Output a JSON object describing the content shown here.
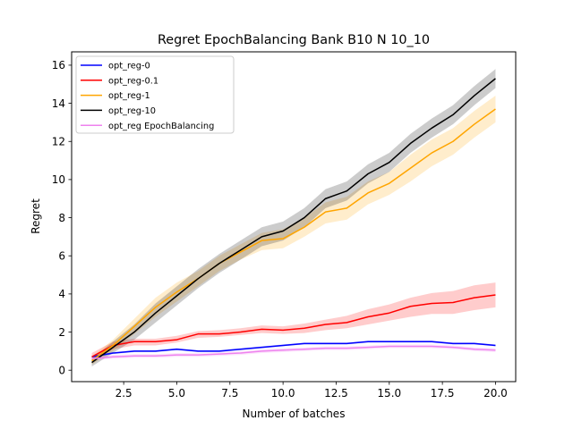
{
  "chart_data": {
    "type": "line",
    "title": "Regret EpochBalancing Bank B10 N 10_10",
    "xlabel": "Number of batches",
    "ylabel": "Regret",
    "xlim": [
      0.05,
      20.95
    ],
    "ylim": [
      -0.6,
      16.7
    ],
    "xticks": [
      2.5,
      5.0,
      7.5,
      10.0,
      12.5,
      15.0,
      17.5,
      20.0
    ],
    "xtick_labels": [
      "2.5",
      "5.0",
      "7.5",
      "10.0",
      "12.5",
      "15.0",
      "17.5",
      "20.0"
    ],
    "yticks": [
      0,
      2,
      4,
      6,
      8,
      10,
      12,
      14,
      16
    ],
    "ytick_labels": [
      "0",
      "2",
      "4",
      "6",
      "8",
      "10",
      "12",
      "14",
      "16"
    ],
    "grid": false,
    "legend_position": "top-left",
    "x": [
      1,
      2,
      3,
      4,
      5,
      6,
      7,
      8,
      9,
      10,
      11,
      12,
      13,
      14,
      15,
      16,
      17,
      18,
      19,
      20
    ],
    "series": [
      {
        "name": "opt_reg-0",
        "color": "#0000ff",
        "values": [
          0.7,
          0.9,
          1.0,
          1.0,
          1.1,
          1.0,
          1.0,
          1.1,
          1.2,
          1.3,
          1.4,
          1.4,
          1.4,
          1.5,
          1.5,
          1.5,
          1.5,
          1.4,
          1.4,
          1.3
        ],
        "lower": [
          0.65,
          0.85,
          0.95,
          0.95,
          1.05,
          0.95,
          0.95,
          1.05,
          1.15,
          1.25,
          1.35,
          1.35,
          1.35,
          1.45,
          1.45,
          1.45,
          1.45,
          1.35,
          1.35,
          1.25
        ],
        "upper": [
          0.75,
          0.95,
          1.05,
          1.05,
          1.15,
          1.05,
          1.05,
          1.15,
          1.25,
          1.35,
          1.45,
          1.45,
          1.45,
          1.55,
          1.55,
          1.55,
          1.55,
          1.45,
          1.45,
          1.35
        ]
      },
      {
        "name": "opt_reg-0.1",
        "color": "#ff0000",
        "values": [
          0.7,
          1.3,
          1.5,
          1.5,
          1.6,
          1.9,
          1.9,
          2.0,
          2.15,
          2.1,
          2.2,
          2.4,
          2.5,
          2.8,
          3.0,
          3.35,
          3.5,
          3.55,
          3.8,
          3.95
        ],
        "lower": [
          0.5,
          1.1,
          1.3,
          1.3,
          1.45,
          1.7,
          1.75,
          1.85,
          1.95,
          1.9,
          1.95,
          2.1,
          2.2,
          2.4,
          2.6,
          2.8,
          2.95,
          2.95,
          3.15,
          3.3
        ],
        "upper": [
          0.9,
          1.5,
          1.65,
          1.65,
          1.8,
          2.05,
          2.1,
          2.2,
          2.35,
          2.3,
          2.45,
          2.65,
          2.85,
          3.2,
          3.45,
          3.8,
          4.05,
          4.15,
          4.45,
          4.6
        ]
      },
      {
        "name": "opt_reg-1",
        "color": "#ffa500",
        "values": [
          0.5,
          1.3,
          2.3,
          3.3,
          4.1,
          4.8,
          5.6,
          6.2,
          6.8,
          6.9,
          7.5,
          8.3,
          8.5,
          9.3,
          9.8,
          10.6,
          11.4,
          12.0,
          12.9,
          13.7
        ],
        "lower": [
          0.3,
          1.0,
          1.9,
          2.8,
          3.6,
          4.4,
          5.2,
          5.8,
          6.3,
          6.4,
          7.0,
          7.7,
          7.9,
          8.7,
          9.2,
          9.9,
          10.7,
          11.3,
          12.2,
          13.0
        ],
        "upper": [
          0.7,
          1.6,
          2.7,
          3.8,
          4.6,
          5.2,
          6.0,
          6.6,
          7.2,
          7.4,
          8.0,
          8.8,
          9.1,
          9.9,
          10.4,
          11.3,
          12.1,
          12.7,
          13.6,
          14.4
        ]
      },
      {
        "name": "opt_reg-10",
        "color": "#000000",
        "values": [
          0.4,
          1.2,
          2.0,
          3.0,
          3.9,
          4.8,
          5.6,
          6.3,
          7.0,
          7.3,
          8.0,
          9.0,
          9.4,
          10.3,
          10.9,
          11.9,
          12.7,
          13.4,
          14.4,
          15.3
        ],
        "lower": [
          0.2,
          0.9,
          1.6,
          2.5,
          3.4,
          4.3,
          5.1,
          5.8,
          6.5,
          6.8,
          7.5,
          8.5,
          8.9,
          9.8,
          10.4,
          11.4,
          12.2,
          12.9,
          13.9,
          14.8
        ],
        "upper": [
          0.6,
          1.5,
          2.4,
          3.5,
          4.4,
          5.3,
          6.1,
          6.8,
          7.5,
          7.8,
          8.5,
          9.5,
          9.9,
          10.8,
          11.4,
          12.4,
          13.2,
          13.9,
          14.9,
          15.8
        ]
      },
      {
        "name": "opt_reg EpochBalancing",
        "color": "#ee82ee",
        "values": [
          0.6,
          0.7,
          0.75,
          0.75,
          0.8,
          0.8,
          0.85,
          0.9,
          1.0,
          1.05,
          1.1,
          1.15,
          1.15,
          1.2,
          1.25,
          1.25,
          1.25,
          1.2,
          1.1,
          1.05
        ],
        "lower": [
          0.5,
          0.6,
          0.65,
          0.65,
          0.7,
          0.7,
          0.75,
          0.8,
          0.9,
          0.95,
          1.0,
          1.05,
          1.05,
          1.1,
          1.15,
          1.15,
          1.15,
          1.1,
          1.0,
          0.95
        ],
        "upper": [
          0.7,
          0.8,
          0.85,
          0.85,
          0.9,
          0.9,
          0.95,
          1.0,
          1.1,
          1.15,
          1.2,
          1.25,
          1.25,
          1.3,
          1.35,
          1.35,
          1.35,
          1.3,
          1.2,
          1.15
        ]
      }
    ]
  }
}
